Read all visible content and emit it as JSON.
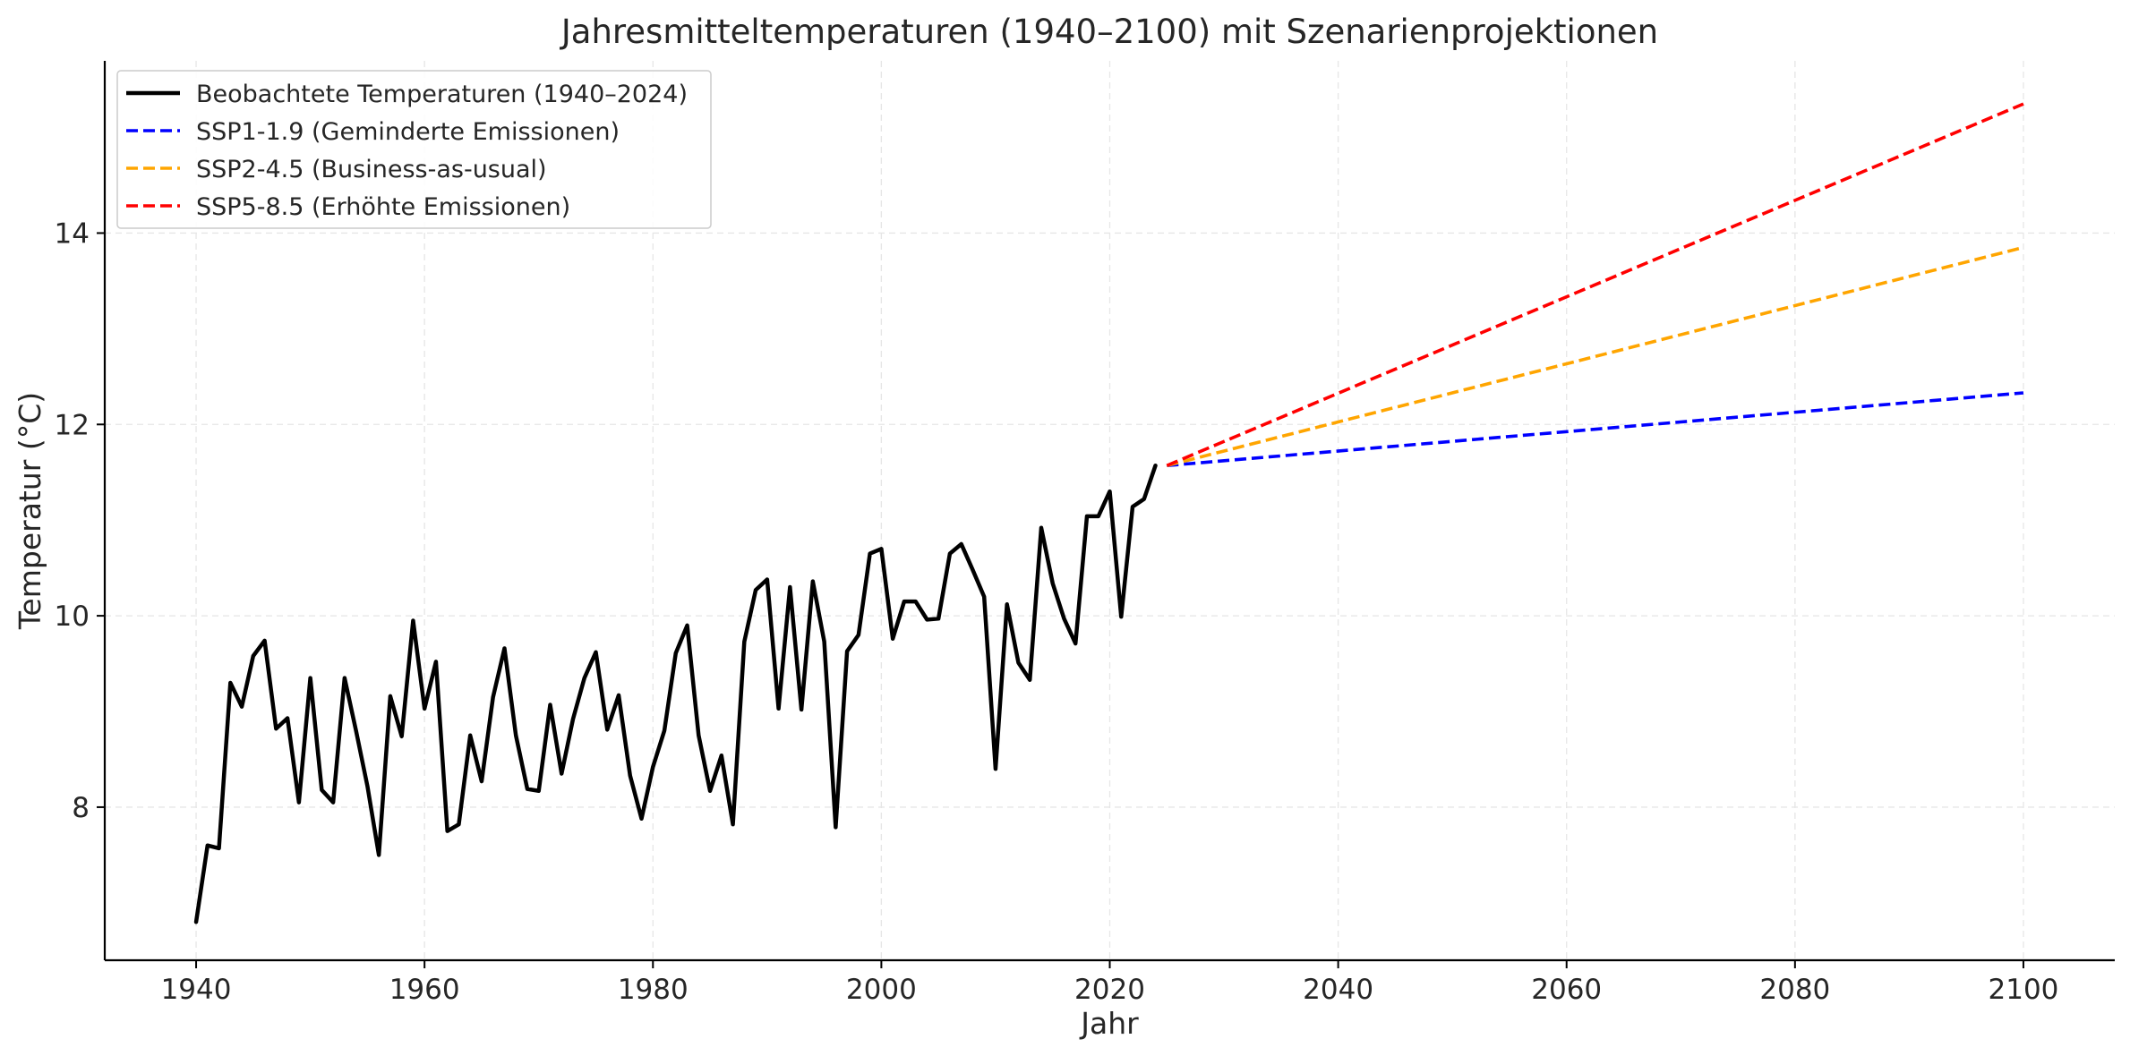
{
  "chart_data": {
    "type": "line",
    "title": "Jahresmitteltemperaturen (1940–2100) mit Szenarienprojektionen",
    "xlabel": "Jahr",
    "ylabel": "Temperatur (°C)",
    "xlim": [
      1932,
      2108
    ],
    "ylim": [
      6.4,
      15.8
    ],
    "xticks": [
      1940,
      1960,
      1980,
      2000,
      2020,
      2040,
      2060,
      2080,
      2100
    ],
    "yticks": [
      8,
      10,
      12,
      14
    ],
    "grid": true,
    "legend_position": "top-left",
    "series": [
      {
        "name": "Beobachtete Temperaturen (1940–2024)",
        "style": "solid",
        "color": "#000000",
        "x": [
          1940,
          1941,
          1942,
          1943,
          1944,
          1945,
          1946,
          1947,
          1948,
          1949,
          1950,
          1951,
          1952,
          1953,
          1954,
          1955,
          1956,
          1957,
          1958,
          1959,
          1960,
          1961,
          1962,
          1963,
          1964,
          1965,
          1966,
          1967,
          1968,
          1969,
          1970,
          1971,
          1972,
          1973,
          1974,
          1975,
          1976,
          1977,
          1978,
          1979,
          1980,
          1981,
          1982,
          1983,
          1984,
          1985,
          1986,
          1987,
          1988,
          1989,
          1990,
          1991,
          1992,
          1993,
          1994,
          1995,
          1996,
          1997,
          1998,
          1999,
          2000,
          2001,
          2002,
          2003,
          2004,
          2005,
          2006,
          2007,
          2008,
          2009,
          2010,
          2011,
          2012,
          2013,
          2014,
          2015,
          2016,
          2017,
          2018,
          2019,
          2020,
          2021,
          2022,
          2023,
          2024
        ],
        "values": [
          6.8,
          7.6,
          7.57,
          9.3,
          9.05,
          9.58,
          9.74,
          8.82,
          8.93,
          8.05,
          9.35,
          8.18,
          8.05,
          9.35,
          8.8,
          8.22,
          7.5,
          9.16,
          8.74,
          9.95,
          9.03,
          9.52,
          7.75,
          7.82,
          8.75,
          8.27,
          9.15,
          9.66,
          8.75,
          8.19,
          8.17,
          9.07,
          8.35,
          8.92,
          9.35,
          9.62,
          8.81,
          9.17,
          8.33,
          7.88,
          8.42,
          8.8,
          9.61,
          9.9,
          8.75,
          8.17,
          8.54,
          7.82,
          9.73,
          10.27,
          10.38,
          9.03,
          10.3,
          9.02,
          10.36,
          9.73,
          7.79,
          9.63,
          9.8,
          10.65,
          10.7,
          9.76,
          10.15,
          10.15,
          9.96,
          9.97,
          10.65,
          10.75,
          10.48,
          10.2,
          8.4,
          10.12,
          9.51,
          9.33,
          10.92,
          10.34,
          9.97,
          9.71,
          11.04,
          11.04,
          11.3,
          9.99,
          11.14,
          11.22,
          11.57
        ]
      },
      {
        "name": "SSP1-1.9 (Geminderte Emissionen)",
        "style": "dashed",
        "color": "#0000ff",
        "x": [
          2025,
          2100
        ],
        "values": [
          11.57,
          12.33
        ]
      },
      {
        "name": "SSP2-4.5 (Business-as-usual)",
        "style": "dashed",
        "color": "#ffa500",
        "x": [
          2025,
          2100
        ],
        "values": [
          11.57,
          13.85
        ]
      },
      {
        "name": "SSP5-8.5 (Erhöhte Emissionen)",
        "style": "dashed",
        "color": "#ff0000",
        "x": [
          2025,
          2100
        ],
        "values": [
          11.57,
          15.35
        ]
      }
    ]
  }
}
